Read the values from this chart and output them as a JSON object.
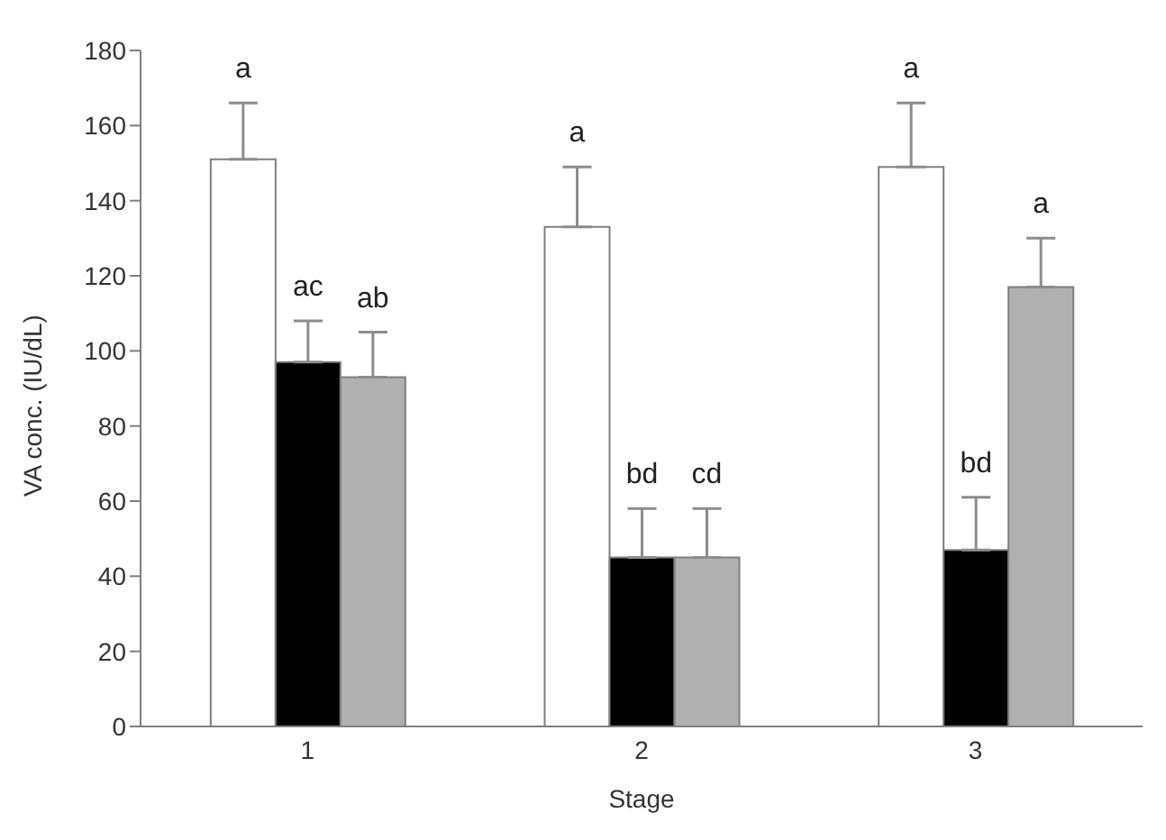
{
  "chart_data": {
    "type": "bar",
    "xlabel": "Stage",
    "ylabel": "VA conc. (IU/dL)",
    "categories": [
      "1",
      "2",
      "3"
    ],
    "ylim": [
      0,
      180
    ],
    "yticks": [
      0,
      20,
      40,
      60,
      80,
      100,
      120,
      140,
      160,
      180
    ],
    "grid": false,
    "series": [
      {
        "color": "#ffffff",
        "values": [
          151,
          133,
          149
        ],
        "errors": [
          15,
          16,
          17
        ],
        "value_labels": [
          "a",
          "a",
          "a"
        ]
      },
      {
        "color": "#000000",
        "values": [
          97,
          45,
          47
        ],
        "errors": [
          11,
          13,
          14
        ],
        "value_labels": [
          "ac",
          "bd",
          "bd"
        ]
      },
      {
        "color": "#b0b0b0",
        "values": [
          93,
          45,
          117
        ],
        "errors": [
          12,
          13,
          13
        ],
        "value_labels": [
          "ab",
          "cd",
          "a"
        ]
      }
    ]
  }
}
